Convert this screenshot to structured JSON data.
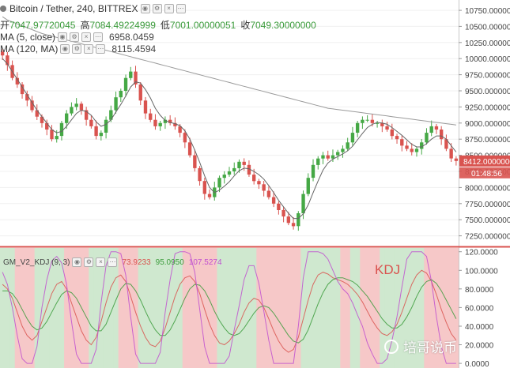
{
  "header": {
    "title": "Bitcoin / Tether, 240, BITTREX",
    "ohlc": [
      {
        "label": "开",
        "value": "7047.97720045"
      },
      {
        "label": "高",
        "value": "7084.49224999"
      },
      {
        "label": "低",
        "value": "7001.00000051"
      },
      {
        "label": "收",
        "value": "7049.30000000"
      }
    ]
  },
  "indicators": [
    {
      "name": "MA (5, close)",
      "value": "6958.0459"
    },
    {
      "name": "MA (120, MA)",
      "value": "8115.4594"
    }
  ],
  "colors": {
    "up": "#45a845",
    "down": "#d9534f",
    "ma_short": "#666666",
    "ma_long": "#9a9a9a",
    "zone_up": "#cfe8cf",
    "zone_down": "#f6c8c8",
    "divider": "#d9534f",
    "price_tag": "#d9534f",
    "time_tag": "#d9534f"
  },
  "price_tag": {
    "price": "8412.00000000",
    "time": "01:48:56"
  },
  "kdj": {
    "title": "GM_V2_KDJ (9, 3)",
    "k_value": "73.9233",
    "d_value": "95.0950",
    "j_value": "107.5274",
    "label": "KDJ",
    "colors": {
      "k": "#d9534f",
      "d": "#3b9b3b",
      "j": "#c04fd0"
    }
  },
  "watermark": "培哥说币",
  "chart_data": [
    {
      "type": "candlestick",
      "title": "Bitcoin / Tether, 240, BITTREX",
      "y_tick_labels": [
        "10750.00000000",
        "10500.00000000",
        "10250.00000000",
        "10000.00000000",
        "9750.00000000",
        "9500.00000000",
        "9250.00000000",
        "9000.00000000",
        "8750.00000000",
        "8500.00000000",
        "8250.00000000",
        "8000.00000000",
        "7750.00000000",
        "7500.00000000",
        "7250.00000000"
      ],
      "y_ticks": [
        10750,
        10500,
        10250,
        10000,
        9750,
        9500,
        9250,
        9000,
        8750,
        8500,
        8250,
        8000,
        7750,
        7500,
        7250
      ],
      "ylim": [
        7110,
        10910
      ],
      "close": [
        10050,
        9900,
        9700,
        9600,
        9450,
        9350,
        9200,
        9100,
        9000,
        8900,
        8750,
        8800,
        9000,
        9150,
        9250,
        9300,
        9200,
        9050,
        8950,
        8800,
        8850,
        9050,
        9200,
        9400,
        9500,
        9700,
        9800,
        9600,
        9350,
        9150,
        9050,
        8950,
        9000,
        9050,
        9000,
        8950,
        8850,
        8700,
        8500,
        8300,
        8100,
        7900,
        7850,
        8000,
        8150,
        8200,
        8250,
        8300,
        8400,
        8350,
        8200,
        8100,
        8050,
        7950,
        7850,
        7750,
        7650,
        7550,
        7450,
        7400,
        7600,
        7900,
        8150,
        8350,
        8450,
        8500,
        8450,
        8500,
        8550,
        8600,
        8700,
        8850,
        9000,
        9050,
        9050,
        9000,
        9000,
        8950,
        8900,
        8800,
        8750,
        8650,
        8600,
        8550,
        8600,
        8700,
        8850,
        8950,
        8900,
        8750,
        8600,
        8450,
        8412
      ],
      "ma_short": [
        10000,
        9920,
        9800,
        9680,
        9560,
        9440,
        9320,
        9200,
        9100,
        9000,
        8900,
        8850,
        8870,
        8950,
        9050,
        9150,
        9200,
        9180,
        9120,
        9020,
        8950,
        8980,
        9050,
        9170,
        9290,
        9420,
        9560,
        9640,
        9620,
        9520,
        9390,
        9230,
        9120,
        9040,
        9010,
        8990,
        8960,
        8880,
        8750,
        8580,
        8390,
        8180,
        8000,
        7920,
        7960,
        8020,
        8090,
        8180,
        8260,
        8300,
        8290,
        8250,
        8200,
        8130,
        8030,
        7920,
        7800,
        7700,
        7600,
        7520,
        7520,
        7590,
        7730,
        7920,
        8100,
        8270,
        8380,
        8440,
        8480,
        8520,
        8570,
        8640,
        8740,
        8840,
        8930,
        8980,
        9010,
        9000,
        8980,
        8930,
        8870,
        8810,
        8740,
        8670,
        8630,
        8630,
        8680,
        8750,
        8800,
        8800,
        8750,
        8650,
        8550
      ],
      "ma_long": [
        10650,
        10600,
        10570,
        10540,
        10510,
        10480,
        10450,
        10420,
        10390,
        10370,
        10350,
        10330,
        10310,
        10290,
        10270,
        10250,
        10230,
        10210,
        10190,
        10170,
        10150,
        10130,
        10110,
        10090,
        10070,
        10050,
        10030,
        10010,
        9990,
        9970,
        9950,
        9930,
        9910,
        9890,
        9870,
        9850,
        9830,
        9810,
        9790,
        9770,
        9750,
        9730,
        9710,
        9690,
        9670,
        9650,
        9630,
        9610,
        9590,
        9570,
        9550,
        9530,
        9510,
        9490,
        9470,
        9450,
        9430,
        9410,
        9390,
        9370,
        9350,
        9330,
        9310,
        9290,
        9270,
        9250,
        9230,
        9220,
        9210,
        9200,
        9190,
        9180,
        9170,
        9160,
        9150,
        9140,
        9130,
        9120,
        9110,
        9100,
        9090,
        9080,
        9070,
        9060,
        9050,
        9040,
        9030,
        9020,
        9010,
        9000,
        8990,
        8980,
        8970
      ],
      "series": [
        {
          "name": "MA (5, close)",
          "values_ref": "ma_short"
        },
        {
          "name": "MA (120, MA)",
          "values_ref": "ma_long"
        }
      ]
    },
    {
      "type": "line",
      "title": "GM_V2_KDJ (9, 3)",
      "y_tick_labels": [
        "120.0000",
        "100.0000",
        "80.0000",
        "60.0000",
        "40.0000",
        "20.0000",
        "0.0000"
      ],
      "y_ticks": [
        120,
        100,
        80,
        60,
        40,
        20,
        0
      ],
      "ylim": [
        -5,
        124
      ],
      "series": [
        {
          "name": "K",
          "values": [
            85,
            80,
            70,
            55,
            40,
            30,
            25,
            30,
            45,
            60,
            75,
            85,
            88,
            80,
            65,
            50,
            35,
            25,
            20,
            28,
            45,
            65,
            82,
            92,
            95,
            88,
            72,
            55,
            40,
            28,
            20,
            18,
            24,
            38,
            55,
            72,
            85,
            92,
            94,
            88,
            75,
            58,
            42,
            30,
            22,
            20,
            24,
            32,
            42,
            55,
            65,
            70,
            68,
            60,
            48,
            35,
            24,
            16,
            12,
            15,
            28,
            48,
            68,
            85,
            95,
            98,
            96,
            92,
            90,
            88,
            85,
            80,
            74,
            66,
            56,
            46,
            38,
            32,
            30,
            34,
            42,
            55,
            70,
            85,
            95,
            100,
            97,
            88,
            74,
            58,
            44,
            32,
            25
          ]
        },
        {
          "name": "D",
          "values": [
            78,
            78,
            75,
            68,
            58,
            48,
            40,
            36,
            38,
            45,
            55,
            65,
            74,
            78,
            76,
            70,
            60,
            50,
            40,
            35,
            35,
            42,
            55,
            68,
            80,
            86,
            85,
            78,
            68,
            56,
            45,
            36,
            30,
            30,
            36,
            46,
            58,
            70,
            80,
            85,
            84,
            78,
            68,
            56,
            46,
            38,
            32,
            30,
            32,
            38,
            46,
            54,
            60,
            62,
            60,
            54,
            46,
            38,
            30,
            24,
            22,
            26,
            36,
            50,
            64,
            76,
            85,
            90,
            92,
            92,
            90,
            88,
            84,
            78,
            72,
            64,
            56,
            48,
            42,
            38,
            38,
            42,
            50,
            60,
            72,
            82,
            88,
            90,
            86,
            78,
            68,
            58,
            48
          ]
        },
        {
          "name": "J",
          "values": [
            98,
            85,
            60,
            30,
            5,
            0,
            0,
            18,
            60,
            90,
            110,
            115,
            108,
            85,
            45,
            10,
            0,
            0,
            0,
            15,
            65,
            105,
            120,
            120,
            118,
            95,
            50,
            10,
            0,
            0,
            0,
            0,
            12,
            55,
            90,
            118,
            120,
            120,
            118,
            98,
            58,
            18,
            0,
            0,
            0,
            0,
            8,
            36,
            62,
            90,
            105,
            105,
            86,
            56,
            25,
            0,
            0,
            0,
            0,
            0,
            40,
            92,
            120,
            120,
            120,
            118,
            112,
            100,
            88,
            80,
            75,
            65,
            52,
            40,
            22,
            10,
            0,
            0,
            5,
            25,
            50,
            82,
            112,
            120,
            120,
            120,
            115,
            88,
            50,
            18,
            0,
            0,
            0
          ]
        }
      ],
      "zones": [
        "up",
        "up",
        "up",
        "down",
        "down",
        "down",
        "down",
        "up",
        "up",
        "up",
        "up",
        "up",
        "up",
        "down",
        "down",
        "down",
        "down",
        "down",
        "up",
        "up",
        "up",
        "up",
        "up",
        "up",
        "down",
        "down",
        "down",
        "down",
        "up",
        "up",
        "up",
        "up",
        "up",
        "up",
        "up",
        "up",
        "up",
        "down",
        "down",
        "down",
        "down",
        "down",
        "down",
        "down",
        "up",
        "up",
        "up",
        "up",
        "up",
        "up",
        "up",
        "up",
        "down",
        "down",
        "down",
        "down",
        "down",
        "down",
        "down",
        "down",
        "down",
        "up",
        "up",
        "up",
        "up",
        "up",
        "up",
        "up",
        "up",
        "down",
        "down",
        "up",
        "up",
        "down",
        "down",
        "down",
        "down",
        "up",
        "up",
        "up",
        "up",
        "up",
        "up",
        "up",
        "up",
        "up",
        "down",
        "down",
        "down",
        "down",
        "down",
        "down",
        "down"
      ]
    }
  ]
}
